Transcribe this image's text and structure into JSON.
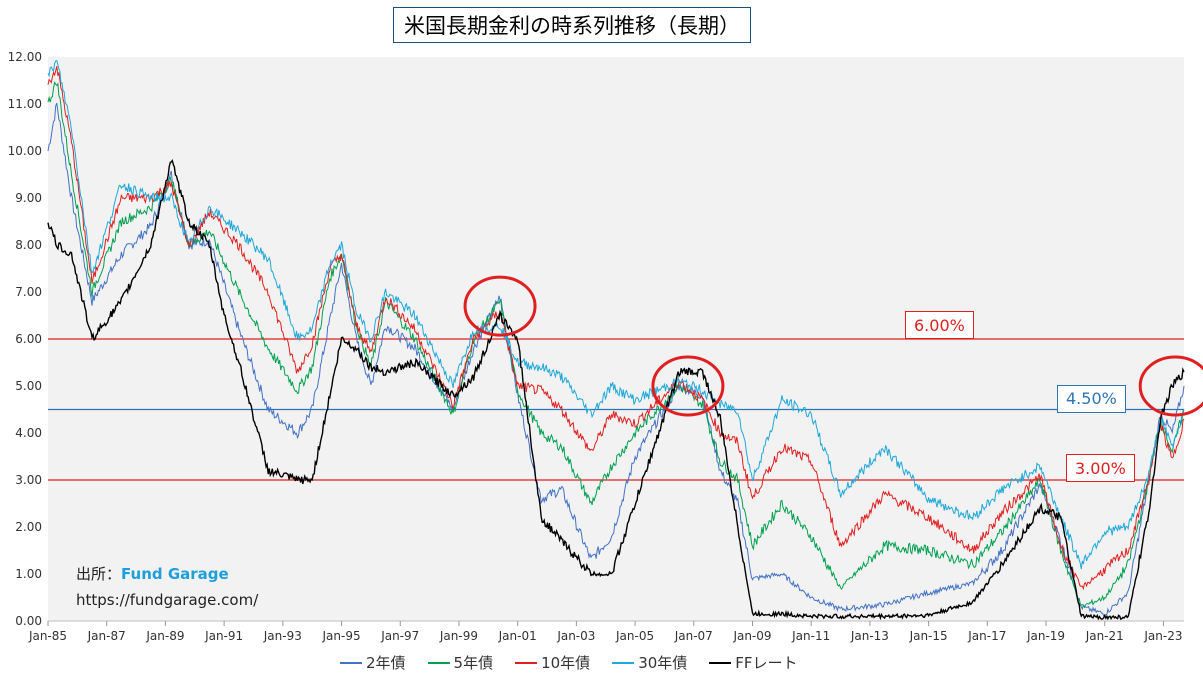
{
  "chart_data": {
    "type": "line",
    "title": "米国長期金利の時系列推移（長期）",
    "ylim": [
      0,
      12
    ],
    "yticks": [
      "0.00",
      "1.00",
      "2.00",
      "3.00",
      "4.00",
      "5.00",
      "6.00",
      "7.00",
      "8.00",
      "9.00",
      "10.00",
      "11.00",
      "12.00"
    ],
    "xticks": [
      "Jan-85",
      "Jan-87",
      "Jan-89",
      "Jan-91",
      "Jan-93",
      "Jan-95",
      "Jan-97",
      "Jan-99",
      "Jan-01",
      "Jan-03",
      "Jan-05",
      "Jan-07",
      "Jan-09",
      "Jan-11",
      "Jan-13",
      "Jan-15",
      "Jan-17",
      "Jan-19",
      "Jan-21",
      "Jan-23"
    ],
    "x_range": [
      1985.0,
      2023.7
    ],
    "grid": false,
    "legend_position": "bottom",
    "series": [
      {
        "name": "2年債",
        "color": "#4472c4",
        "points": [
          [
            1985,
            10.0
          ],
          [
            1985.3,
            11.0
          ],
          [
            1985.8,
            9.0
          ],
          [
            1986.5,
            6.8
          ],
          [
            1987.5,
            7.8
          ],
          [
            1988.5,
            8.4
          ],
          [
            1989.2,
            9.5
          ],
          [
            1989.8,
            8.0
          ],
          [
            1990.5,
            8.1
          ],
          [
            1991.5,
            6.2
          ],
          [
            1992.5,
            4.5
          ],
          [
            1993.5,
            4.0
          ],
          [
            1994,
            4.5
          ],
          [
            1994.6,
            6.4
          ],
          [
            1995,
            7.6
          ],
          [
            1995.5,
            6.0
          ],
          [
            1996,
            5.0
          ],
          [
            1996.5,
            6.3
          ],
          [
            1997.5,
            5.8
          ],
          [
            1998.8,
            4.5
          ],
          [
            1999.5,
            5.8
          ],
          [
            2000.4,
            6.9
          ],
          [
            2001,
            4.8
          ],
          [
            2001.8,
            2.6
          ],
          [
            2002.5,
            2.8
          ],
          [
            2003.5,
            1.3
          ],
          [
            2004.2,
            1.8
          ],
          [
            2005,
            3.5
          ],
          [
            2006.5,
            5.0
          ],
          [
            2007.3,
            4.8
          ],
          [
            2007.9,
            3.2
          ],
          [
            2008.5,
            2.5
          ],
          [
            2009,
            0.9
          ],
          [
            2010,
            1.0
          ],
          [
            2011,
            0.5
          ],
          [
            2012,
            0.25
          ],
          [
            2013.5,
            0.35
          ],
          [
            2015,
            0.6
          ],
          [
            2016.5,
            0.8
          ],
          [
            2017.5,
            1.5
          ],
          [
            2018.8,
            2.9
          ],
          [
            2019.5,
            1.7
          ],
          [
            2020.2,
            0.3
          ],
          [
            2021,
            0.15
          ],
          [
            2021.8,
            0.6
          ],
          [
            2022.5,
            3.0
          ],
          [
            2022.9,
            4.4
          ],
          [
            2023.3,
            4.0
          ],
          [
            2023.7,
            5.0
          ]
        ]
      },
      {
        "name": "5年債",
        "color": "#00a050",
        "points": [
          [
            1985,
            11.0
          ],
          [
            1985.3,
            11.5
          ],
          [
            1985.8,
            9.5
          ],
          [
            1986.5,
            7.0
          ],
          [
            1987.5,
            8.5
          ],
          [
            1988.5,
            8.8
          ],
          [
            1989.2,
            9.4
          ],
          [
            1989.8,
            8.0
          ],
          [
            1990.5,
            8.3
          ],
          [
            1991.5,
            7.0
          ],
          [
            1992.5,
            5.8
          ],
          [
            1993.5,
            4.9
          ],
          [
            1994,
            5.4
          ],
          [
            1994.6,
            7.3
          ],
          [
            1995,
            7.8
          ],
          [
            1995.5,
            6.3
          ],
          [
            1996,
            5.4
          ],
          [
            1996.5,
            6.8
          ],
          [
            1997.5,
            6.0
          ],
          [
            1998.8,
            4.4
          ],
          [
            1999.5,
            6.0
          ],
          [
            2000.4,
            6.8
          ],
          [
            2001,
            4.9
          ],
          [
            2001.8,
            4.0
          ],
          [
            2002.5,
            3.7
          ],
          [
            2003.5,
            2.5
          ],
          [
            2004.2,
            3.3
          ],
          [
            2005,
            4.0
          ],
          [
            2006.5,
            5.0
          ],
          [
            2007.3,
            4.6
          ],
          [
            2007.9,
            3.4
          ],
          [
            2008.5,
            3.0
          ],
          [
            2009,
            1.6
          ],
          [
            2010,
            2.5
          ],
          [
            2011,
            1.8
          ],
          [
            2012,
            0.7
          ],
          [
            2013.5,
            1.6
          ],
          [
            2015,
            1.5
          ],
          [
            2016.5,
            1.2
          ],
          [
            2017.5,
            1.9
          ],
          [
            2018.8,
            3.0
          ],
          [
            2019.5,
            1.5
          ],
          [
            2020.2,
            0.3
          ],
          [
            2021,
            0.5
          ],
          [
            2021.8,
            1.2
          ],
          [
            2022.5,
            3.0
          ],
          [
            2022.9,
            4.3
          ],
          [
            2023.3,
            3.6
          ],
          [
            2023.7,
            4.5
          ]
        ]
      },
      {
        "name": "10年債",
        "color": "#e02020",
        "points": [
          [
            1985,
            11.4
          ],
          [
            1985.3,
            11.8
          ],
          [
            1985.8,
            10.2
          ],
          [
            1986.5,
            7.2
          ],
          [
            1987.5,
            9.0
          ],
          [
            1988.5,
            9.0
          ],
          [
            1989.2,
            9.3
          ],
          [
            1989.8,
            8.0
          ],
          [
            1990.5,
            8.7
          ],
          [
            1991.5,
            8.0
          ],
          [
            1992.5,
            7.0
          ],
          [
            1993.5,
            5.3
          ],
          [
            1994,
            5.9
          ],
          [
            1994.6,
            7.5
          ],
          [
            1995,
            7.8
          ],
          [
            1995.5,
            6.3
          ],
          [
            1996,
            5.7
          ],
          [
            1996.5,
            6.9
          ],
          [
            1997.5,
            6.2
          ],
          [
            1998.8,
            4.6
          ],
          [
            1999.5,
            6.0
          ],
          [
            2000.4,
            6.6
          ],
          [
            2001,
            5.0
          ],
          [
            2001.8,
            4.9
          ],
          [
            2002.5,
            4.5
          ],
          [
            2003.5,
            3.6
          ],
          [
            2004.2,
            4.4
          ],
          [
            2005,
            4.2
          ],
          [
            2006.5,
            5.1
          ],
          [
            2007.3,
            4.7
          ],
          [
            2007.9,
            4.0
          ],
          [
            2008.5,
            3.8
          ],
          [
            2009,
            2.6
          ],
          [
            2010,
            3.7
          ],
          [
            2011,
            3.4
          ],
          [
            2012,
            1.6
          ],
          [
            2013.5,
            2.7
          ],
          [
            2015,
            2.2
          ],
          [
            2016.5,
            1.5
          ],
          [
            2017.5,
            2.3
          ],
          [
            2018.8,
            3.1
          ],
          [
            2019.5,
            1.6
          ],
          [
            2020.2,
            0.7
          ],
          [
            2021,
            1.1
          ],
          [
            2021.8,
            1.5
          ],
          [
            2022.5,
            3.0
          ],
          [
            2022.9,
            4.2
          ],
          [
            2023.3,
            3.4
          ],
          [
            2023.7,
            4.3
          ]
        ]
      },
      {
        "name": "30年債",
        "color": "#1fa8d8",
        "points": [
          [
            1985,
            11.6
          ],
          [
            1985.3,
            11.9
          ],
          [
            1985.8,
            10.5
          ],
          [
            1986.5,
            7.4
          ],
          [
            1987.5,
            9.3
          ],
          [
            1988.5,
            9.0
          ],
          [
            1989.2,
            9.0
          ],
          [
            1989.8,
            8.0
          ],
          [
            1990.5,
            8.8
          ],
          [
            1991.5,
            8.3
          ],
          [
            1992.5,
            7.7
          ],
          [
            1993.5,
            6.0
          ],
          [
            1994,
            6.2
          ],
          [
            1994.6,
            7.6
          ],
          [
            1995,
            8.0
          ],
          [
            1995.5,
            6.6
          ],
          [
            1996,
            6.0
          ],
          [
            1996.5,
            7.0
          ],
          [
            1997.5,
            6.5
          ],
          [
            1998.8,
            5.0
          ],
          [
            1999.5,
            6.2
          ],
          [
            2000.4,
            6.3
          ],
          [
            2001,
            5.5
          ],
          [
            2001.8,
            5.4
          ],
          [
            2002.5,
            5.2
          ],
          [
            2003.5,
            4.4
          ],
          [
            2004.2,
            5.0
          ],
          [
            2005,
            4.7
          ],
          [
            2006.5,
            5.1
          ],
          [
            2007.3,
            4.9
          ],
          [
            2007.9,
            4.6
          ],
          [
            2008.5,
            4.5
          ],
          [
            2009,
            3.0
          ],
          [
            2010,
            4.7
          ],
          [
            2011,
            4.4
          ],
          [
            2012,
            2.7
          ],
          [
            2013.5,
            3.7
          ],
          [
            2015,
            2.6
          ],
          [
            2016.5,
            2.2
          ],
          [
            2017.5,
            2.8
          ],
          [
            2018.8,
            3.3
          ],
          [
            2019.5,
            2.2
          ],
          [
            2020.2,
            1.2
          ],
          [
            2021,
            1.9
          ],
          [
            2021.8,
            2.0
          ],
          [
            2022.5,
            3.1
          ],
          [
            2022.9,
            4.3
          ],
          [
            2023.3,
            3.7
          ],
          [
            2023.7,
            4.5
          ]
        ]
      },
      {
        "name": "FFレート",
        "color": "#000000",
        "points": [
          [
            1985,
            8.5
          ],
          [
            1985.3,
            8.0
          ],
          [
            1985.8,
            7.8
          ],
          [
            1986.5,
            6.0
          ],
          [
            1987.5,
            6.8
          ],
          [
            1988.5,
            8.0
          ],
          [
            1989.2,
            9.8
          ],
          [
            1989.8,
            8.5
          ],
          [
            1990.5,
            8.0
          ],
          [
            1991,
            6.5
          ],
          [
            1991.5,
            5.5
          ],
          [
            1992.5,
            3.2
          ],
          [
            1993.5,
            3.0
          ],
          [
            1994,
            3.0
          ],
          [
            1994.6,
            4.8
          ],
          [
            1995,
            6.0
          ],
          [
            1995.5,
            5.8
          ],
          [
            1996,
            5.4
          ],
          [
            1996.5,
            5.3
          ],
          [
            1997.5,
            5.5
          ],
          [
            1998.8,
            4.8
          ],
          [
            1999.5,
            5.2
          ],
          [
            2000.4,
            6.5
          ],
          [
            2001,
            6.0
          ],
          [
            2001.8,
            2.2
          ],
          [
            2002.5,
            1.7
          ],
          [
            2003.5,
            1.0
          ],
          [
            2004.2,
            1.0
          ],
          [
            2005,
            2.5
          ],
          [
            2006.5,
            5.3
          ],
          [
            2007.3,
            5.3
          ],
          [
            2007.9,
            4.3
          ],
          [
            2008.5,
            2.0
          ],
          [
            2009,
            0.15
          ],
          [
            2010,
            0.15
          ],
          [
            2011,
            0.1
          ],
          [
            2012,
            0.1
          ],
          [
            2013.5,
            0.1
          ],
          [
            2015,
            0.12
          ],
          [
            2016.5,
            0.4
          ],
          [
            2017.5,
            1.2
          ],
          [
            2018.8,
            2.4
          ],
          [
            2019.5,
            2.2
          ],
          [
            2020.2,
            0.1
          ],
          [
            2021,
            0.08
          ],
          [
            2021.8,
            0.08
          ],
          [
            2022.5,
            2.3
          ],
          [
            2022.9,
            4.3
          ],
          [
            2023.3,
            5.0
          ],
          [
            2023.7,
            5.3
          ]
        ]
      }
    ],
    "reference_lines": [
      {
        "label": "6.00%",
        "value": 6.0,
        "color": "#e02020"
      },
      {
        "label": "4.50%",
        "value": 4.5,
        "color": "#2e75b6"
      },
      {
        "label": "3.00%",
        "value": 3.0,
        "color": "#e02020"
      }
    ],
    "highlight_circles": [
      {
        "x": 2000.4,
        "y": 6.7
      },
      {
        "x": 2006.8,
        "y": 5.0
      },
      {
        "x": 2023.4,
        "y": 5.0
      }
    ]
  },
  "source": {
    "label": "出所：",
    "brand": "Fund Garage",
    "url": "https://fundgarage.com/"
  }
}
